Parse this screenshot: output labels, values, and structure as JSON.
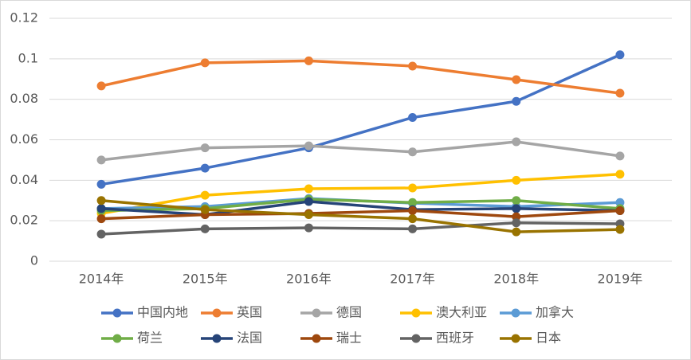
{
  "chart_data": {
    "type": "line",
    "categories": [
      "2014年",
      "2015年",
      "2016年",
      "2017年",
      "2018年",
      "2019年"
    ],
    "ylim": [
      0,
      0.12
    ],
    "yticks": [
      0,
      0.02,
      0.04,
      0.06,
      0.08,
      0.1,
      0.12
    ],
    "grid": true,
    "legend": "bottom",
    "series": [
      {
        "name": "中国内地",
        "color": "#4472c4",
        "values": [
          0.038,
          0.046,
          0.056,
          0.071,
          0.079,
          0.102
        ]
      },
      {
        "name": "英国",
        "color": "#ed7d31",
        "values": [
          0.0866,
          0.098,
          0.099,
          0.0964,
          0.0897,
          0.083
        ]
      },
      {
        "name": "德国",
        "color": "#a5a5a5",
        "values": [
          0.05,
          0.056,
          0.057,
          0.054,
          0.059,
          0.052
        ]
      },
      {
        "name": "澳大利亚",
        "color": "#ffc000",
        "values": [
          0.0236,
          0.0326,
          0.0358,
          0.0362,
          0.04,
          0.043
        ]
      },
      {
        "name": "加拿大",
        "color": "#5b9bd5",
        "values": [
          0.026,
          0.027,
          0.031,
          0.0287,
          0.027,
          0.029
        ]
      },
      {
        "name": "荷兰",
        "color": "#70ad47",
        "values": [
          0.025,
          0.026,
          0.0306,
          0.029,
          0.03,
          0.026
        ]
      },
      {
        "name": "法国",
        "color": "#264478",
        "values": [
          0.026,
          0.023,
          0.0295,
          0.0255,
          0.026,
          0.025
        ]
      },
      {
        "name": "瑞士",
        "color": "#9e480e",
        "values": [
          0.021,
          0.023,
          0.0236,
          0.025,
          0.022,
          0.025
        ]
      },
      {
        "name": "西班牙",
        "color": "#636363",
        "values": [
          0.0134,
          0.016,
          0.0165,
          0.016,
          0.019,
          0.0185
        ]
      },
      {
        "name": "日本",
        "color": "#997300",
        "values": [
          0.03,
          0.0255,
          0.023,
          0.021,
          0.0145,
          0.0157
        ]
      }
    ]
  }
}
